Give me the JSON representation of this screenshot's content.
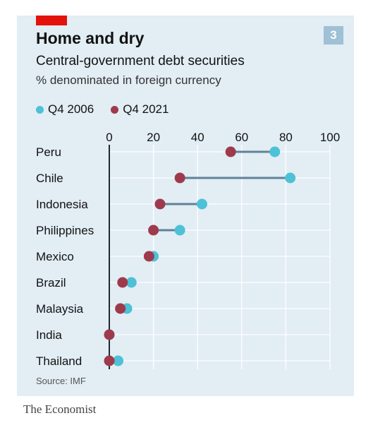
{
  "header": {
    "title": "Home and dry",
    "subtitle": "Central-government debt securities",
    "units": "% denominated in foreign currency",
    "badge": "3"
  },
  "legend": {
    "items": [
      {
        "label": "Q4 2006",
        "color": "#4dc1d6"
      },
      {
        "label": "Q4 2021",
        "color": "#9e3a4c"
      }
    ]
  },
  "chart_data": {
    "type": "dot-plot",
    "x_ticks": [
      "0",
      "20",
      "40",
      "60",
      "80",
      "100"
    ],
    "xlim": [
      0,
      100
    ],
    "grid": true,
    "legend_position": "top-left",
    "categories": [
      "Peru",
      "Chile",
      "Indonesia",
      "Philippines",
      "Mexico",
      "Brazil",
      "Malaysia",
      "India",
      "Thailand"
    ],
    "series": [
      {
        "name": "Q4 2006",
        "color": "#4dc1d6",
        "values": [
          75,
          82,
          42,
          32,
          20,
          10,
          8,
          0,
          4
        ]
      },
      {
        "name": "Q4 2021",
        "color": "#9e3a4c",
        "values": [
          55,
          32,
          23,
          20,
          18,
          6,
          5,
          0,
          0
        ]
      }
    ],
    "connector_color": "#5f8298"
  },
  "footer": {
    "source": "Source: IMF",
    "brand": "The Economist"
  }
}
